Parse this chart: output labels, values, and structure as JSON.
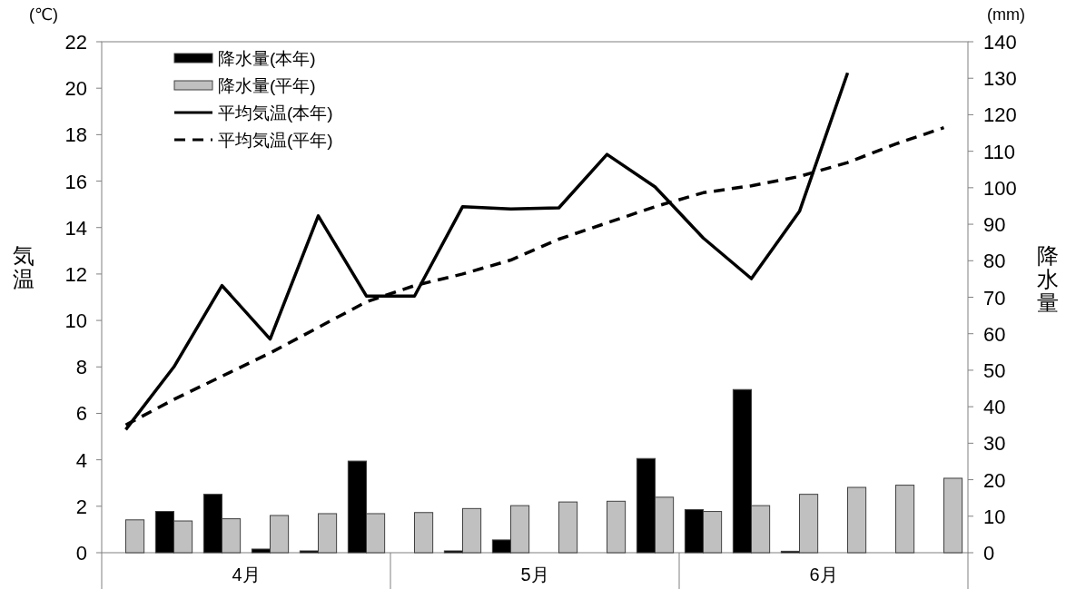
{
  "chart_data": {
    "type": "bar",
    "ylabel": "気温",
    "y2label": "降水量",
    "categories": [
      null,
      null,
      null,
      null,
      null,
      null,
      null,
      null,
      null,
      null,
      null,
      null,
      null,
      null,
      null,
      null,
      null,
      null
    ],
    "series": [
      {
        "name": "降水量(本年)",
        "axis": "y2",
        "color": "#000000",
        "values": [
          null,
          11.3,
          16.0,
          1.0,
          0.5,
          25.1,
          null,
          0.5,
          3.5,
          null,
          null,
          25.8,
          11.8,
          44.7,
          0.4,
          null,
          null,
          null
        ]
      },
      {
        "name": "降水量(平年)",
        "axis": "y2",
        "color": "#c0c0c0",
        "values": [
          9.0,
          8.7,
          9.3,
          10.2,
          10.7,
          10.7,
          11.0,
          12.1,
          12.9,
          13.9,
          14.1,
          15.2,
          11.3,
          12.9,
          16.0,
          17.9,
          18.5,
          20.4
        ]
      },
      {
        "name": "平均気温(本年)",
        "type": "line",
        "axis": "y",
        "color": "#000000",
        "line_style": "solid",
        "values": [
          5.3,
          8.0,
          11.5,
          9.2,
          14.5,
          11.05,
          11.05,
          14.9,
          14.8,
          14.85,
          17.15,
          15.75,
          13.55,
          11.8,
          14.7,
          20.66,
          null,
          null
        ]
      },
      {
        "name": "平均気温(平年)",
        "type": "line",
        "axis": "y",
        "color": "#000000",
        "line_style": "dashed",
        "values": [
          5.5,
          6.6,
          7.6,
          8.6,
          9.7,
          10.8,
          11.5,
          12.0,
          12.6,
          13.5,
          14.2,
          14.9,
          15.5,
          15.8,
          16.2,
          16.8,
          17.6,
          18.3
        ]
      }
    ],
    "ylim": [
      0,
      22
    ],
    "yticks": [
      0,
      2,
      4,
      6,
      8,
      10,
      12,
      14,
      16,
      18,
      20,
      22
    ],
    "y2lim": [
      0,
      140
    ],
    "y2ticks": [
      0,
      10,
      20,
      30,
      40,
      50,
      60,
      70,
      80,
      90,
      100,
      110,
      120,
      130,
      140
    ],
    "legend": "top left",
    "grid": false,
    "annotations": [
      "4月",
      "5月",
      "6月",
      "(℃)",
      "(mm)"
    ]
  }
}
